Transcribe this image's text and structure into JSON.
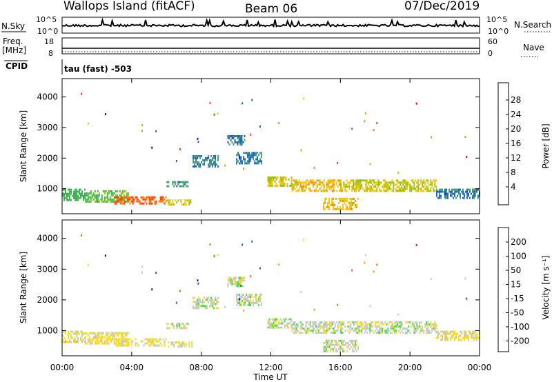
{
  "header": {
    "station": "Wallops Island (fitACF)",
    "beam": "Beam 06",
    "date": "07/Dec/2019"
  },
  "nsky_panel": {
    "left_label": "N.Sky",
    "left_ticks": [
      "10^5",
      "10^0"
    ],
    "right_ticks": [
      "10^5",
      "10^0"
    ],
    "right_label": "N.Search"
  },
  "freq_panel": {
    "label_1": "Freq.",
    "label_2": "[MHz]",
    "left_ticks": [
      "18",
      "8"
    ],
    "right_ticks": [
      "60",
      "0"
    ],
    "right_label": "Nave",
    "cpid_label": "CPID",
    "cpid_text": "tau (fast) -503"
  },
  "power_panel": {
    "ylabel": "Slant Range [km]",
    "yticks": [
      "4000",
      "3000",
      "2000",
      "1000"
    ],
    "colorbar_label": "Power [dB]",
    "colorbar_ticks": [
      "28",
      "24",
      "20",
      "16",
      "12",
      "8",
      "4"
    ],
    "colors": [
      "#0000ff",
      "#2060c0",
      "#40a070",
      "#40c040",
      "#a0c000",
      "#ffc000",
      "#ff8000",
      "#ff4000",
      "#ff0000"
    ]
  },
  "velocity_panel": {
    "ylabel": "Slant Range [km]",
    "yticks": [
      "4000",
      "3000",
      "2000",
      "1000"
    ],
    "colorbar_label": "Velocity [m s⁻¹]",
    "colorbar_ticks": [
      "200",
      "100",
      "50",
      "15",
      "-15",
      "-50",
      "-100",
      "-200"
    ],
    "colors": [
      "#0000ff",
      "#2060c0",
      "#208040",
      "#40e040",
      "#c8c8c0",
      "#ffe000",
      "#ffa000",
      "#ff6000",
      "#ff0000"
    ]
  },
  "xaxis": {
    "label": "Time UT",
    "ticks": [
      "00:00",
      "04:00",
      "08:00",
      "12:00",
      "16:00",
      "20:00",
      "00:00"
    ]
  },
  "chart_data": {
    "type": "heatmap",
    "x_unit": "hours UT",
    "xlim": [
      0,
      24
    ],
    "ylim": [
      180,
      4600
    ],
    "power_clim": [
      2,
      32
    ],
    "velocity_clim": [
      -250,
      250
    ],
    "scatter_regions": [
      {
        "t0": 0.0,
        "t1": 1.3,
        "r0": 650,
        "r1": 1000,
        "power": 12,
        "velocity": 40
      },
      {
        "t0": 1.3,
        "t1": 3.8,
        "r0": 600,
        "r1": 950,
        "power": 14,
        "velocity": 40
      },
      {
        "t0": 3.0,
        "t1": 6.0,
        "r0": 500,
        "r1": 750,
        "power": 26,
        "velocity": 40
      },
      {
        "t0": 6.0,
        "t1": 7.5,
        "r0": 450,
        "r1": 650,
        "power": 18,
        "velocity": 20
      },
      {
        "t0": 6.0,
        "t1": 7.2,
        "r0": 1050,
        "r1": 1250,
        "power": 10,
        "velocity": 0
      },
      {
        "t0": 7.5,
        "t1": 9.0,
        "r0": 1750,
        "r1": 2100,
        "power": 9,
        "velocity": 0
      },
      {
        "t0": 9.5,
        "t1": 10.5,
        "r0": 2450,
        "r1": 2750,
        "power": 9,
        "velocity": 5
      },
      {
        "t0": 10.0,
        "t1": 11.5,
        "r0": 1800,
        "r1": 2200,
        "power": 8,
        "velocity": 0
      },
      {
        "t0": 11.8,
        "t1": 13.2,
        "r0": 1100,
        "r1": 1400,
        "power": 18,
        "velocity": 0
      },
      {
        "t0": 13.2,
        "t1": 16.0,
        "r0": 950,
        "r1": 1300,
        "power": 20,
        "velocity": 0
      },
      {
        "t0": 15.0,
        "t1": 17.0,
        "r0": 300,
        "r1": 700,
        "power": 20,
        "velocity": 0
      },
      {
        "t0": 16.0,
        "t1": 21.5,
        "r0": 900,
        "r1": 1300,
        "power": 18,
        "velocity": 0
      },
      {
        "t0": 21.5,
        "t1": 24.0,
        "r0": 700,
        "r1": 1000,
        "power": 8,
        "velocity": 30
      }
    ]
  }
}
